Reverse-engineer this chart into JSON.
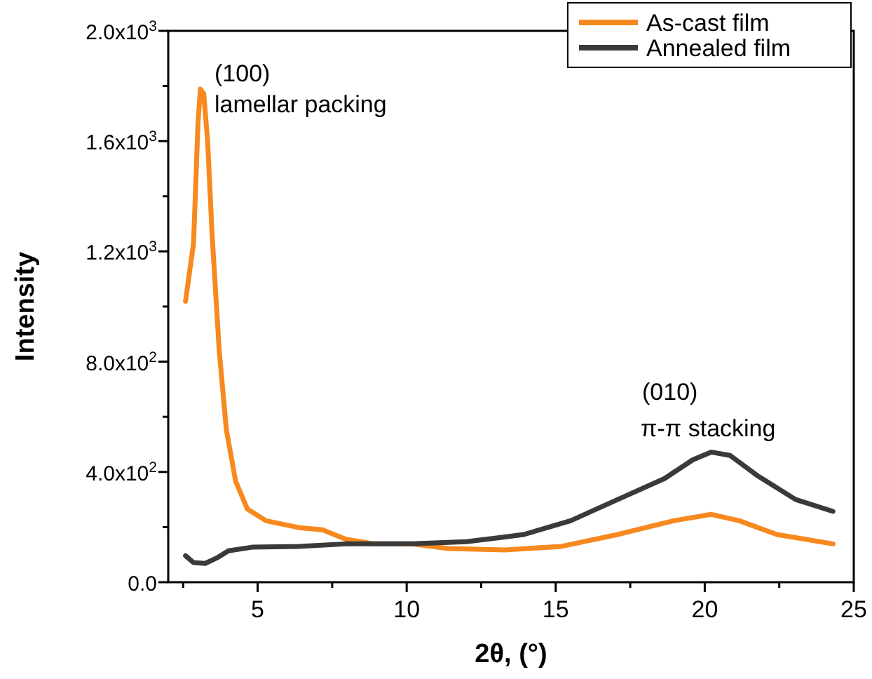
{
  "chart_data": {
    "type": "line",
    "xlabel": "2θ, (°)",
    "ylabel": "Intensity",
    "xlim": [
      2,
      25
    ],
    "xticks": [
      {
        "value": 2.5,
        "label": null
      },
      5,
      {
        "value": 7.5,
        "label": null
      },
      10,
      {
        "value": 12.5,
        "label": null
      },
      15,
      {
        "value": 17.5,
        "label": null
      },
      20,
      {
        "value": 22.5,
        "label": null
      },
      25
    ],
    "ylim": [
      0,
      2000
    ],
    "yticks": [
      {
        "value": 0,
        "label": "0.0"
      },
      {
        "value": 200,
        "label": null
      },
      {
        "value": 400,
        "label": "4.0x10$^{2}$"
      },
      {
        "value": 600,
        "label": null
      },
      {
        "value": 800,
        "label": "8.0x10$^{2}$"
      },
      {
        "value": 1000,
        "label": null
      },
      {
        "value": 1200,
        "label": "1.2x10$^{3}$"
      },
      {
        "value": 1400,
        "label": null
      },
      {
        "value": 1600,
        "label": "1.6x10$^{3}$"
      },
      {
        "value": 1800,
        "label": null
      },
      {
        "value": 2000,
        "label": "2.0x10$^{3}$"
      }
    ],
    "legend": "top right",
    "grid": false,
    "marker": "none",
    "line_style": "solid",
    "series": [
      {
        "name": "As-cast film",
        "color": "#f7891f",
        "x": [
          2.58,
          2.85,
          3.0,
          3.08,
          3.19,
          3.32,
          3.47,
          3.71,
          3.95,
          4.26,
          4.65,
          5.28,
          6.38,
          7.17,
          7.96,
          8.9,
          10.16,
          11.4,
          13.3,
          15.19,
          17.08,
          18.96,
          20.22,
          21.16,
          22.42,
          24.3
        ],
        "values": [
          1019,
          1230,
          1670,
          1789,
          1772,
          1603,
          1264,
          841,
          553,
          367,
          266,
          223,
          198,
          190,
          156,
          139,
          139,
          122,
          117,
          130,
          173,
          223,
          246,
          223,
          173,
          139
        ]
      },
      {
        "name": "Annealed film",
        "color": "#3a3a3a",
        "x": [
          2.58,
          2.85,
          3.24,
          3.63,
          4.02,
          4.81,
          6.38,
          7.96,
          10.16,
          12.0,
          13.3,
          13.93,
          15.5,
          17.08,
          18.65,
          19.6,
          20.22,
          20.85,
          21.8,
          23.05,
          24.3
        ],
        "values": [
          96,
          71,
          68,
          88,
          114,
          127,
          130,
          139,
          139,
          147,
          164,
          173,
          223,
          300,
          376,
          444,
          472,
          460,
          384,
          300,
          257
        ]
      }
    ],
    "annotations": [
      "(100)",
      "lamellar packing",
      "(010)",
      "π-π stacking"
    ]
  }
}
